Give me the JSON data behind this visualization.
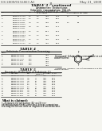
{
  "background_color": "#f5f5f0",
  "header_left": "US 2009/0155863 A1",
  "header_right": "May 21, 2009",
  "page_number": "11",
  "table1_title": "TABLE 3 - continued",
  "table1_sub1": "Asymmetric Reductions",
  "table1_sub2": "Substrate concentration: 100 g/L",
  "table1_sub3": "Cofactor NADPH (0.5 mM)",
  "table1_col1": "No.",
  "table1_col2": "Enzyme",
  "table1_col3": "pH",
  "table1_col4": "% ee subst.",
  "table1_col5": "% conversion",
  "table1_col6": "% ee prod.",
  "table1_col7": "% ee (anti)",
  "table1_col8": "% de (anti)",
  "table1_rows": [
    [
      "1",
      "KRED-P1-A04",
      "6.5",
      "4.5",
      ">99",
      "97.4",
      "4.1",
      "97"
    ],
    [
      "2",
      "KRED-P1-A02\nKRED-P1-A12",
      "6.5",
      "4.5",
      ">99",
      "96.1",
      "",
      ""
    ],
    [
      "3",
      "KRED-P1-B01\nKRED-P1-B04",
      "7.0",
      "1.5",
      ">99",
      "98.1",
      "4.1",
      "96"
    ],
    [
      "4",
      "KRED-P1-B06\nKRED-P1-B11",
      "7.0",
      "1.5",
      ">99",
      "95.1",
      "",
      ""
    ],
    [
      "5",
      "KRED-P1-C04\nKRED-P1-C07",
      "6.5",
      "1.5",
      "86.1",
      "46.2",
      "",
      ""
    ],
    [
      "6",
      "KRED-P1-D04\nKRED-P1-D05",
      "6.5",
      "1.5",
      ">99",
      "46.2",
      "",
      ""
    ],
    [
      "7",
      "KRED-P2-A11\nKRED-P2-D11",
      "6.5",
      "1.5",
      ">99",
      "86.4",
      "4.1",
      "92"
    ],
    [
      "8",
      "KRED-P1-C11",
      "6.5",
      "4.5",
      ">99",
      "88.4",
      "",
      ""
    ]
  ],
  "table2_title": "TABLE 4",
  "table2_sub": "Substrate Concentration Screening",
  "table2_cols": [
    "Entry",
    "Enzyme",
    "Substrate Conc. (g/L)",
    "% ee"
  ],
  "table2_rows": [
    [
      "1",
      "KRED-P1-A04",
      "100",
      ">99"
    ],
    [
      "2",
      "KRED-P1-A04",
      "150",
      ">99"
    ],
    [
      "3",
      "KRED-P1-A04",
      "200",
      ">99"
    ],
    [
      "4",
      "KRED-P1-B01",
      "100",
      ">99"
    ],
    [
      "5",
      "KRED-P1-B01",
      "150",
      ">99"
    ],
    [
      "6",
      "KRED-P1-B01",
      "200",
      ">99"
    ]
  ],
  "table3_title": "TABLE 5",
  "table3_sub": "Enzymatic Reduction of Substrate (1)",
  "table3_cols": [
    "Entry",
    "Enzyme",
    "pH",
    "Temp (C)",
    "% conv.",
    "% ee"
  ],
  "table3_rows": [
    [
      "1",
      "KRED-P1-A04",
      "7.0",
      "25",
      ">99",
      "99.2"
    ],
    [
      "2",
      "KRED-P1-A04",
      "7.0",
      "30",
      ">99",
      "99.1"
    ],
    [
      "3",
      "KRED-P1-A04",
      "7.0",
      "35",
      ">99",
      "99.0"
    ],
    [
      "4",
      "KRED-P1-A04",
      "7.0",
      "40",
      ">99",
      "98.8"
    ],
    [
      "5",
      "KRED-P1-A04",
      "6.5",
      "25",
      ">99",
      "99.3"
    ],
    [
      "6",
      "KRED-P1-A04",
      "6.5",
      "30",
      ">99",
      "99.2"
    ],
    [
      "7",
      "KRED-P1-A04",
      "6.5",
      "35",
      ">99",
      "99.1"
    ],
    [
      "8",
      "KRED-P1-A04",
      "6.5",
      "40",
      ">99",
      "99.0"
    ],
    [
      "9",
      "KRED-P1-B01",
      "7.0",
      "25",
      ">99",
      "99.4"
    ],
    [
      "10",
      "KRED-P1-B01",
      "7.0",
      "30",
      ">99",
      "99.3"
    ],
    [
      "11",
      "KRED-P1-B01",
      "7.0",
      "35",
      ">99",
      "99.2"
    ],
    [
      "12",
      "KRED-P1-B01",
      "7.0",
      "40",
      ">99",
      "99.0"
    ]
  ],
  "note_line1": "A compound, Scheme 1 or a stereoisomer or a stereo-",
  "note_line2": "isomer thereof:",
  "claim_title": "What is claimed:",
  "claim_line1": "1. A process for preparing (R)- or (S)-sec-",
  "claim_line2": "phenethylamine from a prochiral ketone comprising",
  "claim_line3": "reacting the ketone with an engineered ketoreductase"
}
